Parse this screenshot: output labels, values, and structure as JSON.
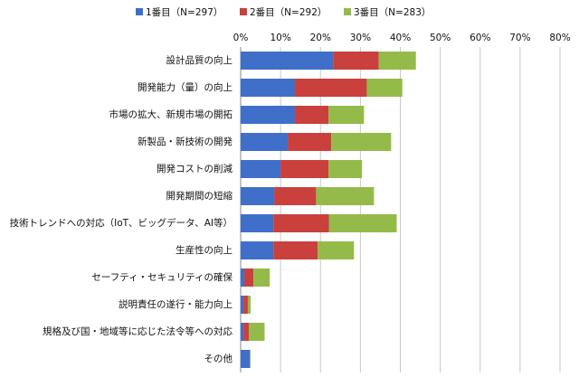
{
  "chart_data": {
    "type": "stacked-bar-horizontal",
    "categories": [
      "設計品質の向上",
      "開発能力（量）の向上",
      "市場の拡大、新規市場の開拓",
      "新製品・新技術の開発",
      "開発コストの削減",
      "開発期間の短縮",
      "技術トレンドへの対応（IoT、ビッグデータ、AI等）",
      "生産性の向上",
      "セーフティ・セキュリティの確保",
      "説明責任の遂行・能力向上",
      "規格及び国・地域等に応じた法令等への対応",
      "その他"
    ],
    "series": [
      {
        "name": "1番目（N=297）",
        "color": "#3f6fc9",
        "values": [
          23.2,
          13.6,
          13.6,
          11.8,
          10.0,
          8.4,
          8.2,
          8.2,
          0.9,
          0.7,
          0.7,
          2.3
        ]
      },
      {
        "name": "2番目（N=292）",
        "color": "#c9403d",
        "values": [
          11.4,
          18.0,
          8.4,
          10.9,
          12.0,
          10.5,
          13.9,
          11.1,
          2.3,
          1.1,
          1.4,
          0
        ]
      },
      {
        "name": "3番目（N=283）",
        "color": "#94bb4a",
        "values": [
          9.3,
          8.9,
          8.9,
          15.0,
          8.4,
          14.5,
          17.0,
          9.1,
          4.1,
          0.7,
          3.9,
          0.2
        ]
      }
    ],
    "xlim": [
      0,
      80
    ],
    "xticks": [
      {
        "value": 0,
        "label": "0%"
      },
      {
        "value": 10,
        "label": "10%"
      },
      {
        "value": 20,
        "label": "20%"
      },
      {
        "value": 30,
        "label": "30%"
      },
      {
        "value": 40,
        "label": "40%"
      },
      {
        "value": 50,
        "label": "50%"
      },
      {
        "value": 60,
        "label": "60%"
      },
      {
        "value": 70,
        "label": "70%"
      },
      {
        "value": 80,
        "label": "80%"
      }
    ],
    "grid": true,
    "legend": "top"
  }
}
